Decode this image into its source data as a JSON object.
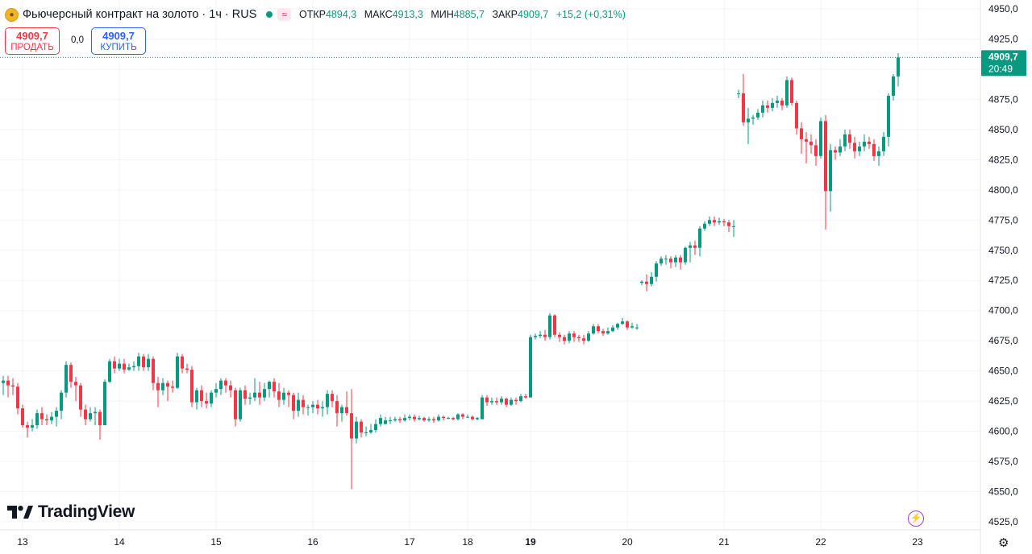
{
  "header": {
    "symbol_title": "Фьючерсный контракт на золото · 1ч · RUS",
    "wave_icon": "≈",
    "open_label": "ОТКР",
    "open_value": "4894,3",
    "high_label": "МАКС",
    "high_value": "4913,3",
    "low_label": "МИН",
    "low_value": "4885,7",
    "close_label": "ЗАКР",
    "close_value": "4909,7",
    "change": "+15,2 (+0,31%)"
  },
  "trade": {
    "sell_price": "4909,7",
    "sell_label": "ПРОДАТЬ",
    "spread": "0,0",
    "buy_price": "4909,7",
    "buy_label": "КУПИТЬ"
  },
  "brand": "TradingView",
  "colors": {
    "up": "#089981",
    "down": "#f23645",
    "grid": "#f0f3fa",
    "text": "#131722"
  },
  "chart_data": {
    "type": "candlestick",
    "title": "Фьючерсный контракт на золото · 1ч · RUS",
    "ylim": [
      4512.5,
      4962.5
    ],
    "y_ticks": [
      4525,
      4550,
      4575,
      4600,
      4625,
      4650,
      4675,
      4700,
      4725,
      4750,
      4775,
      4800,
      4825,
      4850,
      4875,
      4900,
      4925,
      4950
    ],
    "y_tick_labels": [
      "4525,0",
      "4550,0",
      "4575,0",
      "4600,0",
      "4625,0",
      "4650,0",
      "4675,0",
      "4700,0",
      "4725,0",
      "4750,0",
      "4775,0",
      "4800,0",
      "4825,0",
      "4850,0",
      "4875,0",
      "4900,0",
      "4925,0",
      "4950,0"
    ],
    "x_ticks": [
      {
        "label": "13",
        "candle": 5,
        "bold": false
      },
      {
        "label": "14",
        "candle": 25,
        "bold": false
      },
      {
        "label": "15",
        "candle": 45,
        "bold": false
      },
      {
        "label": "16",
        "candle": 65,
        "bold": false
      },
      {
        "label": "17",
        "candle": 85,
        "bold": false
      },
      {
        "label": "18",
        "candle": 97,
        "bold": false
      },
      {
        "label": "19",
        "candle": 110,
        "bold": true
      },
      {
        "label": "20",
        "candle": 130,
        "bold": false
      },
      {
        "label": "21",
        "candle": 150,
        "bold": false
      },
      {
        "label": "22",
        "candle": 170,
        "bold": false
      },
      {
        "label": "23",
        "candle": 190,
        "bold": false
      }
    ],
    "last_price": {
      "value": 4909.7,
      "label": "4909,7",
      "countdown": "20:49"
    },
    "candles": [
      [
        4652,
        4640,
        4654,
        4638
      ],
      [
        4640,
        4642,
        4646,
        4630
      ],
      [
        4642,
        4638,
        4646,
        4628
      ],
      [
        4638,
        4637,
        4644,
        4630
      ],
      [
        4637,
        4619,
        4640,
        4614
      ],
      [
        4619,
        4605,
        4622,
        4603
      ],
      [
        4605,
        4603,
        4608,
        4595
      ],
      [
        4603,
        4605,
        4610,
        4600
      ],
      [
        4605,
        4615,
        4618,
        4602
      ],
      [
        4615,
        4610,
        4620,
        4605
      ],
      [
        4610,
        4609,
        4614,
        4605
      ],
      [
        4609,
        4612,
        4616,
        4606
      ],
      [
        4612,
        4617,
        4620,
        4604
      ],
      [
        4617,
        4632,
        4634,
        4610
      ],
      [
        4632,
        4655,
        4658,
        4628
      ],
      [
        4655,
        4641,
        4657,
        4636
      ],
      [
        4641,
        4638,
        4645,
        4625
      ],
      [
        4638,
        4618,
        4640,
        4612
      ],
      [
        4618,
        4610,
        4622,
        4605
      ],
      [
        4610,
        4615,
        4620,
        4608
      ],
      [
        4615,
        4616,
        4620,
        4605
      ],
      [
        4616,
        4605,
        4618,
        4593
      ],
      [
        4605,
        4641,
        4643,
        4640
      ],
      [
        4641,
        4658,
        4660,
        4640
      ],
      [
        4658,
        4652,
        4662,
        4648
      ],
      [
        4652,
        4656,
        4660,
        4650
      ],
      [
        4656,
        4651,
        4660,
        4648
      ],
      [
        4651,
        4653,
        4656,
        4650
      ],
      [
        4653,
        4654,
        4658,
        4650
      ],
      [
        4654,
        4662,
        4665,
        4650
      ],
      [
        4662,
        4653,
        4664,
        4650
      ],
      [
        4653,
        4660,
        4664,
        4650
      ],
      [
        4660,
        4640,
        4662,
        4634
      ],
      [
        4640,
        4634,
        4645,
        4620
      ],
      [
        4634,
        4640,
        4644,
        4630
      ],
      [
        4640,
        4637,
        4642,
        4625
      ],
      [
        4637,
        4636,
        4642,
        4632
      ],
      [
        4636,
        4662,
        4665,
        4635
      ],
      [
        4662,
        4652,
        4664,
        4648
      ],
      [
        4652,
        4651,
        4656,
        4648
      ],
      [
        4651,
        4624,
        4654,
        4620
      ],
      [
        4624,
        4634,
        4636,
        4618
      ],
      [
        4634,
        4625,
        4638,
        4620
      ],
      [
        4625,
        4623,
        4632,
        4619
      ],
      [
        4623,
        4632,
        4634,
        4620
      ],
      [
        4632,
        4635,
        4640,
        4628
      ],
      [
        4635,
        4642,
        4644,
        4630
      ],
      [
        4642,
        4638,
        4644,
        4632
      ],
      [
        4638,
        4634,
        4642,
        4628
      ],
      [
        4634,
        4610,
        4636,
        4604
      ],
      [
        4610,
        4634,
        4636,
        4608
      ],
      [
        4634,
        4627,
        4638,
        4622
      ],
      [
        4627,
        4628,
        4632,
        4622
      ],
      [
        4628,
        4632,
        4644,
        4625
      ],
      [
        4632,
        4628,
        4641,
        4622
      ],
      [
        4628,
        4635,
        4640,
        4625
      ],
      [
        4635,
        4641,
        4642,
        4628
      ],
      [
        4641,
        4633,
        4644,
        4628
      ],
      [
        4633,
        4626,
        4640,
        4620
      ],
      [
        4626,
        4632,
        4636,
        4622
      ],
      [
        4632,
        4630,
        4634,
        4620
      ],
      [
        4630,
        4617,
        4632,
        4610
      ],
      [
        4617,
        4626,
        4632,
        4612
      ],
      [
        4626,
        4620,
        4630,
        4614
      ],
      [
        4620,
        4620,
        4622,
        4613
      ],
      [
        4620,
        4622,
        4625,
        4615
      ],
      [
        4622,
        4619,
        4626,
        4614
      ],
      [
        4619,
        4620,
        4625,
        4612
      ],
      [
        4620,
        4631,
        4634,
        4614
      ],
      [
        4631,
        4625,
        4634,
        4620
      ],
      [
        4625,
        4615,
        4630,
        4604
      ],
      [
        4615,
        4620,
        4622,
        4608
      ],
      [
        4620,
        4615,
        4633,
        4613
      ],
      [
        4615,
        4594,
        4635,
        4552
      ],
      [
        4594,
        4608,
        4612,
        4590
      ],
      [
        4608,
        4599,
        4610,
        4595
      ],
      [
        4599,
        4599,
        4604,
        4596
      ],
      [
        4599,
        4601,
        4606,
        4598
      ],
      [
        4601,
        4606,
        4610,
        4599
      ],
      [
        4606,
        4611,
        4614,
        4604
      ],
      [
        4606,
        4609,
        4612,
        4606
      ],
      [
        4609,
        4609,
        4612,
        4606
      ],
      [
        4609,
        4610,
        4612,
        4608
      ],
      [
        4610,
        4609,
        4612,
        4607
      ],
      [
        4609,
        4611,
        4614,
        4608
      ],
      [
        4611,
        4612,
        4614,
        4609
      ],
      [
        4612,
        4610,
        4614,
        4608
      ],
      [
        4610,
        4611,
        4613,
        4609
      ],
      [
        4611,
        4609,
        4612,
        4608
      ],
      [
        4609,
        4610,
        4612,
        4608
      ],
      [
        4610,
        4609,
        4612,
        4607
      ],
      [
        4609,
        4612,
        4614,
        4608
      ],
      [
        4612,
        4611,
        4613,
        4609
      ],
      [
        4611,
        4611,
        4612,
        4610
      ],
      [
        4611,
        4610,
        4612,
        4609
      ],
      [
        4610,
        4614,
        4615,
        4609
      ],
      [
        4614,
        4612,
        4615,
        4610
      ],
      [
        4612,
        4612,
        4614,
        4611
      ],
      [
        4612,
        4610,
        4613,
        4609
      ],
      [
        4610,
        4611,
        4612,
        4609
      ],
      [
        4610,
        4628,
        4630,
        4610
      ],
      [
        4628,
        4624,
        4630,
        4621
      ],
      [
        4624,
        4625,
        4628,
        4622
      ],
      [
        4625,
        4624,
        4628,
        4622
      ],
      [
        4624,
        4627,
        4629,
        4622
      ],
      [
        4627,
        4622,
        4628,
        4620
      ],
      [
        4622,
        4626,
        4628,
        4621
      ],
      [
        4626,
        4625,
        4628,
        4622
      ],
      [
        4625,
        4629,
        4631,
        4624
      ],
      [
        4629,
        4628,
        4631,
        4627
      ],
      [
        4628,
        4678,
        4680,
        4676
      ],
      [
        4678,
        4679,
        4681,
        4676
      ],
      [
        4679,
        4680,
        4683,
        4677
      ],
      [
        4680,
        4678,
        4684,
        4675
      ],
      [
        4678,
        4696,
        4698,
        4676
      ],
      [
        4696,
        4680,
        4697,
        4678
      ],
      [
        4680,
        4678,
        4682,
        4674
      ],
      [
        4678,
        4675,
        4680,
        4672
      ],
      [
        4675,
        4681,
        4683,
        4673
      ],
      [
        4681,
        4678,
        4683,
        4674
      ],
      [
        4678,
        4677,
        4680,
        4674
      ],
      [
        4677,
        4675,
        4680,
        4672
      ],
      [
        4675,
        4681,
        4683,
        4674
      ],
      [
        4681,
        4687,
        4689,
        4680
      ],
      [
        4687,
        4683,
        4689,
        4681
      ],
      [
        4683,
        4681,
        4685,
        4679
      ],
      [
        4681,
        4683,
        4686,
        4680
      ],
      [
        4683,
        4686,
        4688,
        4682
      ],
      [
        4686,
        4689,
        4690,
        4684
      ],
      [
        4689,
        4691,
        4694,
        4688
      ],
      [
        4691,
        4686,
        4692,
        4684
      ],
      [
        4686,
        4687,
        4690,
        4685
      ],
      [
        4686,
        4686,
        4689,
        4684
      ],
      [
        4723,
        4724,
        4725,
        4721
      ],
      [
        4724,
        4722,
        4730,
        4716
      ],
      [
        4722,
        4728,
        4732,
        4720
      ],
      [
        4728,
        4739,
        4741,
        4724
      ],
      [
        4739,
        4743,
        4745,
        4737
      ],
      [
        4743,
        4743,
        4746,
        4738
      ],
      [
        4743,
        4740,
        4745,
        4735
      ],
      [
        4740,
        4744,
        4746,
        4736
      ],
      [
        4744,
        4740,
        4746,
        4734
      ],
      [
        4740,
        4752,
        4753,
        4738
      ],
      [
        4752,
        4754,
        4757,
        4740
      ],
      [
        4754,
        4752,
        4758,
        4746
      ],
      [
        4752,
        4768,
        4770,
        4745
      ],
      [
        4768,
        4772,
        4774,
        4766
      ],
      [
        4772,
        4775,
        4778,
        4770
      ],
      [
        4775,
        4773,
        4778,
        4770
      ],
      [
        4773,
        4774,
        4777,
        4771
      ],
      [
        4774,
        4773,
        4776,
        4770
      ],
      [
        4773,
        4770,
        4775,
        4765
      ],
      [
        4770,
        4770,
        4775,
        4761
      ],
      [
        4880,
        4880,
        4883,
        4876
      ],
      [
        4880,
        4856,
        4896,
        4853
      ],
      [
        4856,
        4859,
        4868,
        4838
      ],
      [
        4859,
        4860,
        4862,
        4854
      ],
      [
        4860,
        4864,
        4867,
        4858
      ],
      [
        4864,
        4870,
        4874,
        4860
      ],
      [
        4870,
        4868,
        4874,
        4864
      ],
      [
        4868,
        4872,
        4876,
        4865
      ],
      [
        4872,
        4874,
        4878,
        4868
      ],
      [
        4874,
        4870,
        4876,
        4866
      ],
      [
        4870,
        4891,
        4894,
        4868
      ],
      [
        4891,
        4872,
        4893,
        4870
      ],
      [
        4872,
        4851,
        4874,
        4846
      ],
      [
        4851,
        4842,
        4856,
        4830
      ],
      [
        4842,
        4840,
        4848,
        4822
      ],
      [
        4840,
        4837,
        4846,
        4830
      ],
      [
        4837,
        4828,
        4842,
        4820
      ],
      [
        4828,
        4857,
        4860,
        4826
      ],
      [
        4857,
        4799,
        4862,
        4767
      ],
      [
        4799,
        4833,
        4838,
        4782
      ],
      [
        4833,
        4831,
        4836,
        4825
      ],
      [
        4831,
        4836,
        4842,
        4828
      ],
      [
        4836,
        4846,
        4850,
        4832
      ],
      [
        4846,
        4839,
        4850,
        4834
      ],
      [
        4839,
        4832,
        4844,
        4826
      ],
      [
        4832,
        4836,
        4840,
        4828
      ],
      [
        4836,
        4840,
        4846,
        4832
      ],
      [
        4840,
        4838,
        4844,
        4834
      ],
      [
        4838,
        4828,
        4842,
        4824
      ],
      [
        4828,
        4832,
        4836,
        4820
      ],
      [
        4832,
        4844,
        4848,
        4828
      ],
      [
        4844,
        4878,
        4880,
        4836
      ],
      [
        4878,
        4894,
        4896,
        4874
      ],
      [
        4894,
        4909.7,
        4913.3,
        4885.7
      ]
    ]
  }
}
